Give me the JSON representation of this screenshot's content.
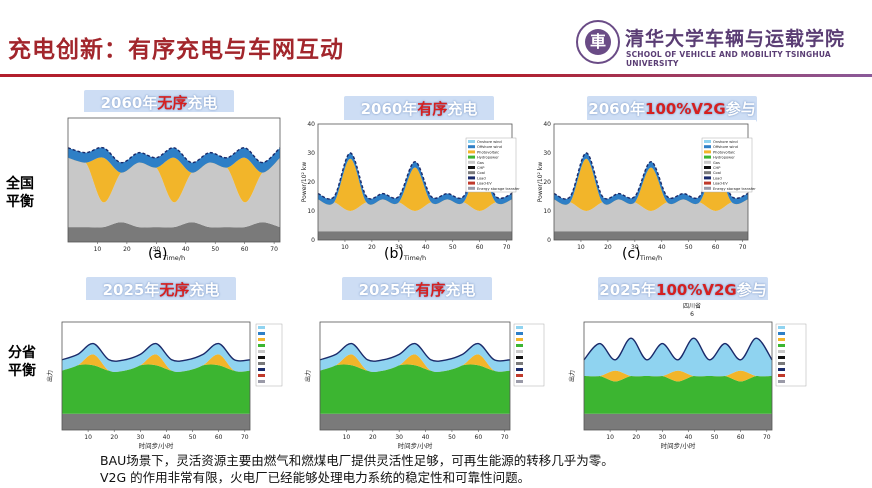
{
  "header": {
    "title": "充电创新：有序充电与车网互动",
    "university_cn": "清华大学车辆与运载学院",
    "university_en": "SCHOOL OF VEHICLE AND MOBILITY TSINGHUA UNIVERSITY",
    "logo_char": "車"
  },
  "row_labels": {
    "national_line1": "全国",
    "national_line2": "平衡",
    "provincial_line1": "分省",
    "provincial_line2": "平衡"
  },
  "tags": [
    {
      "pre": "2060年",
      "red": "无序",
      "post": "充电"
    },
    {
      "pre": "2060年",
      "red": "有序",
      "post": "充电"
    },
    {
      "pre": "2060年",
      "red": "100%V2G",
      "post": "参与"
    },
    {
      "pre": "2025年",
      "red": "无序",
      "post": "充电"
    },
    {
      "pre": "2025年",
      "red": "有序",
      "post": "充电"
    },
    {
      "pre": "2025年",
      "red": "100%V2G",
      "post": "参与"
    }
  ],
  "sublabels": {
    "a": "(a)",
    "b": "(b)",
    "c": "(c)"
  },
  "top_axes": {
    "xlabel": "Time/h",
    "ylabel": "Power/10² kw",
    "yticks": [
      "0",
      "10",
      "20",
      "30",
      "40"
    ],
    "xticks": [
      "10",
      "20",
      "30",
      "40",
      "50",
      "60",
      "70"
    ]
  },
  "bottom_axes": {
    "province": "四川省",
    "province_sub": "6",
    "xlabel": "时间步/小时",
    "ylabel": "出力",
    "xticks": [
      "10",
      "20",
      "30",
      "40",
      "50",
      "60",
      "70"
    ]
  },
  "legend_top": [
    "Onshore wind",
    "Offshore wind",
    "Photovoltaic",
    "Hydropower",
    "Gas",
    "CHP",
    "Coal",
    "Load",
    "Load-EV",
    "Energy storage transfer"
  ],
  "colors": {
    "onshore_wind": "#8fd3f0",
    "offshore_wind": "#2e7fc6",
    "photovoltaic": "#f2b52a",
    "hydropower": "#3cb531",
    "gas": "#c8c8c8",
    "chp": "#111111",
    "coal": "#7a7a7a",
    "ev_peak": "#c0392b",
    "title_red": "#a2262c"
  },
  "caption": {
    "line1": "BAU场景下，灵活资源主要由燃气和燃煤电厂提供灵活性足够，可再生能源的转移几乎为零。",
    "line2": "V2G 的作用非常有限，火电厂已经能够处理电力系统的稳定性和可靠性问题。"
  },
  "chart_data": [
    {
      "type": "area",
      "title": "2060年无序充电",
      "xlabel": "Time/h",
      "ylabel": "Power/10² kw",
      "x": [
        0,
        6,
        12,
        18,
        24,
        30,
        36,
        42,
        48,
        54,
        60,
        66,
        72
      ],
      "series": [
        {
          "name": "Coal",
          "values": [
            3,
            3,
            3,
            4,
            3,
            3,
            3,
            4,
            3,
            3,
            3,
            4,
            3
          ]
        },
        {
          "name": "Gas",
          "values": [
            14,
            13,
            5,
            10,
            13,
            12,
            5,
            10,
            13,
            12,
            5,
            10,
            14
          ]
        },
        {
          "name": "Photovoltaic",
          "values": [
            0,
            0,
            9,
            0,
            0,
            0,
            9,
            0,
            0,
            0,
            9,
            0,
            0
          ]
        },
        {
          "name": "Offshore wind",
          "values": [
            2,
            2,
            2,
            2,
            2,
            2,
            2,
            2,
            2,
            2,
            2,
            2,
            2
          ]
        }
      ],
      "ylim": [
        0,
        25
      ],
      "xlim": [
        0,
        72
      ]
    },
    {
      "type": "area",
      "title": "2060年有序充电",
      "xlabel": "Time/h",
      "ylabel": "Power/10² kw",
      "x": [
        0,
        6,
        12,
        18,
        24,
        30,
        36,
        42,
        48,
        54,
        60,
        66,
        72
      ],
      "series": [
        {
          "name": "Coal",
          "values": [
            3,
            3,
            3,
            3,
            3,
            3,
            3,
            3,
            3,
            3,
            3,
            3,
            3
          ]
        },
        {
          "name": "Gas",
          "values": [
            11,
            10,
            7,
            10,
            11,
            10,
            7,
            10,
            11,
            10,
            7,
            10,
            11
          ]
        },
        {
          "name": "Photovoltaic",
          "values": [
            0,
            0,
            18,
            0,
            0,
            0,
            15,
            0,
            0,
            0,
            15,
            0,
            0
          ]
        },
        {
          "name": "Offshore wind",
          "values": [
            2,
            2,
            2,
            2,
            2,
            2,
            2,
            2,
            2,
            2,
            2,
            2,
            2
          ]
        }
      ],
      "ylim": [
        0,
        40
      ],
      "xlim": [
        0,
        72
      ]
    },
    {
      "type": "area",
      "title": "2060年100%V2G参与",
      "xlabel": "Time/h",
      "ylabel": "Power/10² kw",
      "x": [
        0,
        6,
        12,
        18,
        24,
        30,
        36,
        42,
        48,
        54,
        60,
        66,
        72
      ],
      "series": [
        {
          "name": "Coal",
          "values": [
            3,
            3,
            3,
            3,
            3,
            3,
            3,
            3,
            3,
            3,
            3,
            3,
            3
          ]
        },
        {
          "name": "Gas",
          "values": [
            11,
            10,
            7,
            10,
            11,
            10,
            7,
            10,
            11,
            10,
            7,
            10,
            11
          ]
        },
        {
          "name": "Photovoltaic",
          "values": [
            0,
            0,
            18,
            0,
            0,
            0,
            15,
            0,
            0,
            0,
            15,
            0,
            0
          ]
        },
        {
          "name": "Offshore wind",
          "values": [
            2,
            2,
            2,
            2,
            2,
            2,
            2,
            2,
            2,
            2,
            2,
            2,
            2
          ]
        }
      ],
      "ylim": [
        0,
        40
      ],
      "xlim": [
        0,
        72
      ]
    },
    {
      "type": "area",
      "title": "2025年无序充电",
      "xlabel": "时间步/小时",
      "ylabel": "出力",
      "x": [
        0,
        6,
        12,
        18,
        24,
        30,
        36,
        42,
        48,
        54,
        60,
        66,
        72
      ],
      "series": [
        {
          "name": "Coal",
          "values": [
            3,
            3,
            3,
            3,
            3,
            3,
            3,
            3,
            3,
            3,
            3,
            3,
            3
          ]
        },
        {
          "name": "Hydropower",
          "values": [
            8,
            9,
            9,
            8,
            8,
            9,
            9,
            8,
            8,
            9,
            9,
            8,
            8
          ]
        },
        {
          "name": "Photovoltaic",
          "values": [
            0,
            0,
            2,
            0,
            0,
            0,
            2,
            0,
            0,
            0,
            2,
            0,
            0
          ]
        },
        {
          "name": "Onshore wind",
          "values": [
            2,
            2,
            2,
            2,
            2,
            2,
            2,
            2,
            2,
            2,
            2,
            2,
            2
          ]
        }
      ],
      "ylim": [
        0,
        20
      ],
      "xlim": [
        0,
        72
      ]
    },
    {
      "type": "area",
      "title": "2025年有序充电",
      "xlabel": "时间步/小时",
      "ylabel": "出力",
      "x": [
        0,
        6,
        12,
        18,
        24,
        30,
        36,
        42,
        48,
        54,
        60,
        66,
        72
      ],
      "series": [
        {
          "name": "Coal",
          "values": [
            3,
            3,
            3,
            3,
            3,
            3,
            3,
            3,
            3,
            3,
            3,
            3,
            3
          ]
        },
        {
          "name": "Hydropower",
          "values": [
            8,
            9,
            9,
            8,
            8,
            9,
            9,
            8,
            8,
            9,
            9,
            8,
            8
          ]
        },
        {
          "name": "Photovoltaic",
          "values": [
            0,
            0,
            2,
            0,
            0,
            0,
            2,
            0,
            0,
            0,
            2,
            0,
            0
          ]
        },
        {
          "name": "Onshore wind",
          "values": [
            2,
            2,
            2,
            2,
            2,
            2,
            2,
            2,
            2,
            2,
            2,
            2,
            2
          ]
        }
      ],
      "ylim": [
        0,
        20
      ],
      "xlim": [
        0,
        72
      ]
    },
    {
      "type": "area",
      "title": "2025年100%V2G参与",
      "xlabel": "时间步/小时",
      "ylabel": "出力",
      "x": [
        0,
        6,
        12,
        18,
        24,
        30,
        36,
        42,
        48,
        54,
        60,
        66,
        72
      ],
      "series": [
        {
          "name": "Coal",
          "values": [
            3,
            3,
            3,
            3,
            3,
            3,
            3,
            3,
            3,
            3,
            3,
            3,
            3
          ]
        },
        {
          "name": "Hydropower",
          "values": [
            7,
            7,
            6,
            7,
            7,
            7,
            6,
            7,
            7,
            7,
            6,
            7,
            7
          ]
        },
        {
          "name": "Photovoltaic",
          "values": [
            0,
            0,
            2,
            0,
            0,
            0,
            2,
            0,
            0,
            0,
            2,
            0,
            0
          ]
        },
        {
          "name": "Onshore wind",
          "values": [
            3,
            6,
            2,
            7,
            3,
            6,
            2,
            7,
            3,
            6,
            2,
            7,
            3
          ]
        }
      ],
      "ylim": [
        0,
        20
      ],
      "xlim": [
        0,
        72
      ]
    }
  ]
}
